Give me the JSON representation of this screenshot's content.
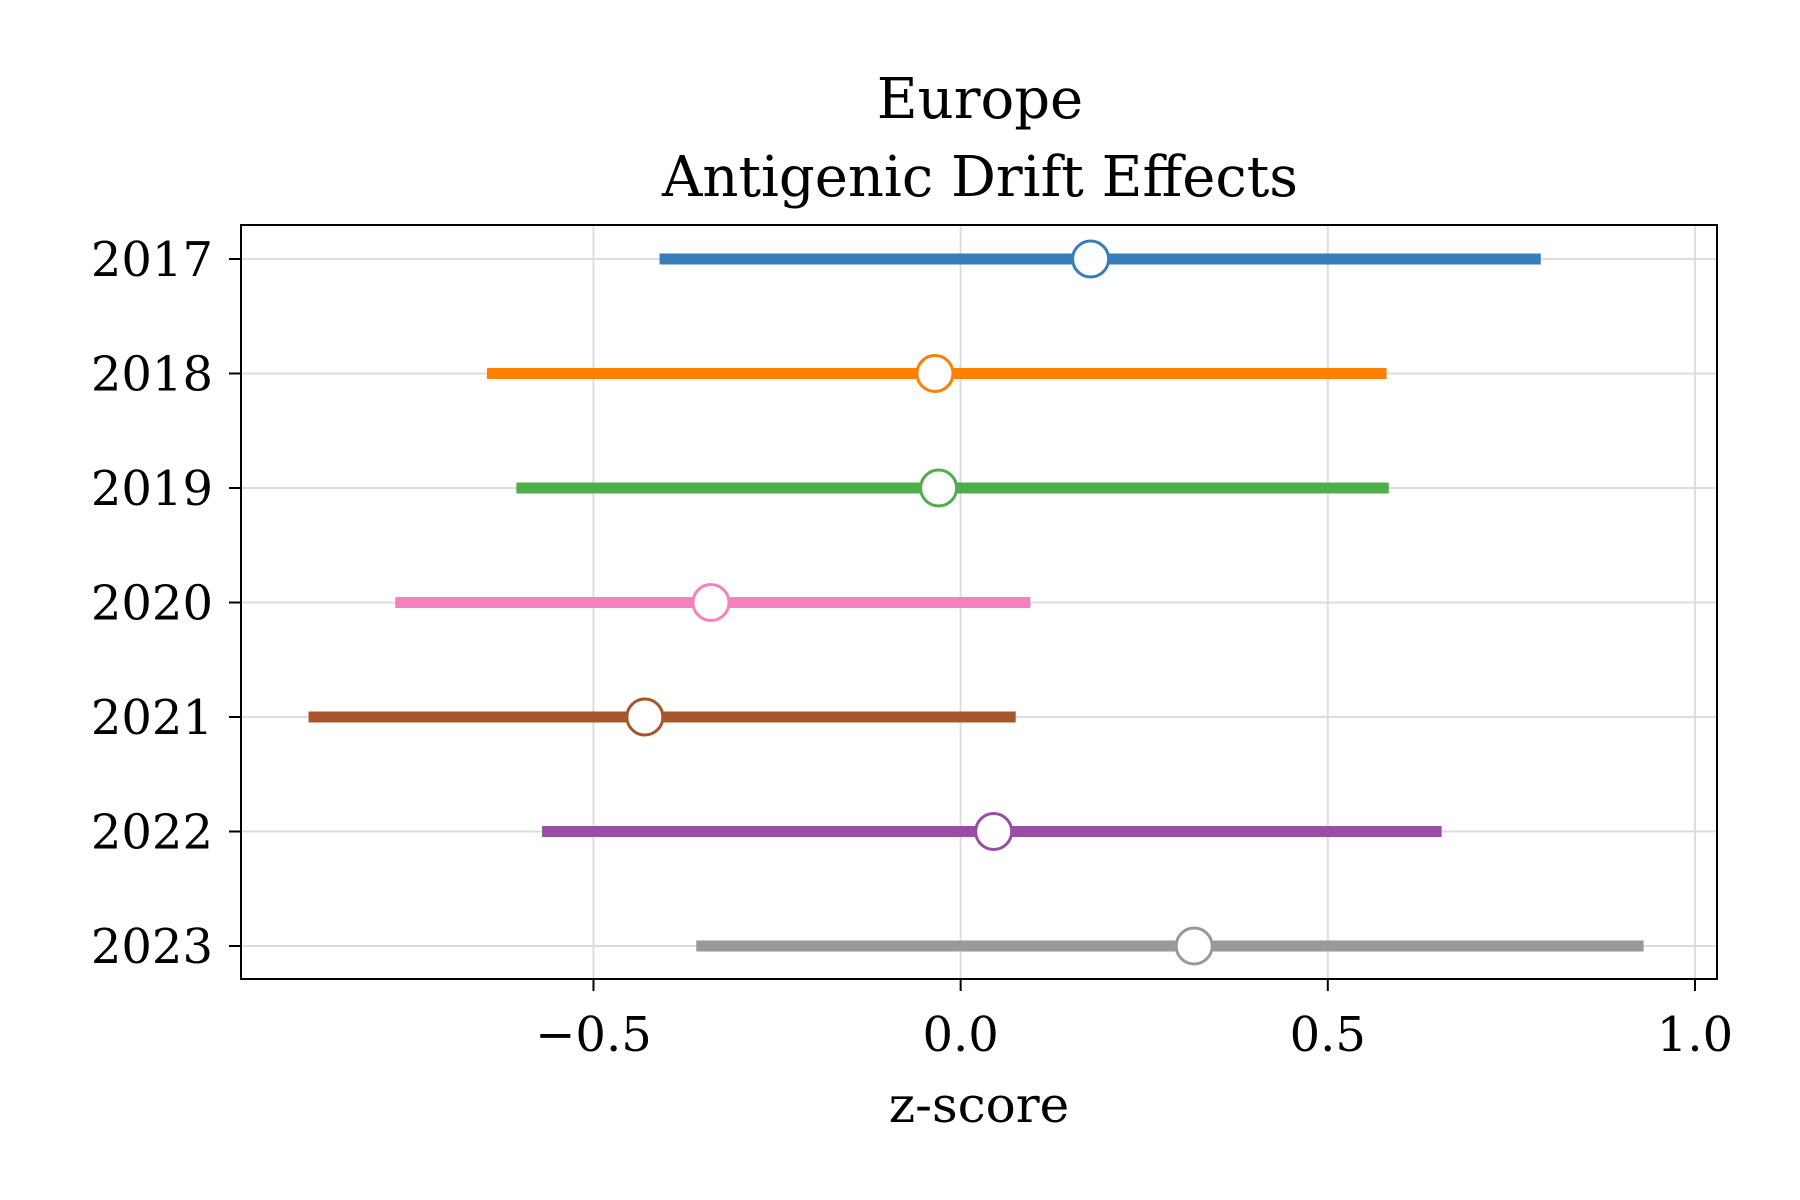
{
  "chart_data": {
    "type": "forest",
    "title": "Europe",
    "subtitle": "Antigenic Drift Effects",
    "xlabel": "z-score",
    "ylabel": "",
    "xlim": [
      -0.98,
      1.03
    ],
    "xticks": [
      -0.5,
      0.0,
      0.5,
      1.0
    ],
    "xtick_labels": [
      "−0.5",
      "0.0",
      "0.5",
      "1.0"
    ],
    "grid": true,
    "series": [
      {
        "category": "2017",
        "estimate": 0.177,
        "lower": -0.41,
        "upper": 0.79,
        "color": "#377eb8"
      },
      {
        "category": "2018",
        "estimate": -0.035,
        "lower": -0.645,
        "upper": 0.58,
        "color": "#ff7f00"
      },
      {
        "category": "2019",
        "estimate": -0.03,
        "lower": -0.605,
        "upper": 0.583,
        "color": "#4daf4a"
      },
      {
        "category": "2020",
        "estimate": -0.34,
        "lower": -0.77,
        "upper": 0.095,
        "color": "#f781bf"
      },
      {
        "category": "2021",
        "estimate": -0.43,
        "lower": -0.888,
        "upper": 0.075,
        "color": "#a65628"
      },
      {
        "category": "2022",
        "estimate": 0.045,
        "lower": -0.57,
        "upper": 0.655,
        "color": "#984ea3"
      },
      {
        "category": "2023",
        "estimate": 0.318,
        "lower": -0.36,
        "upper": 0.93,
        "color": "#999999"
      }
    ]
  }
}
